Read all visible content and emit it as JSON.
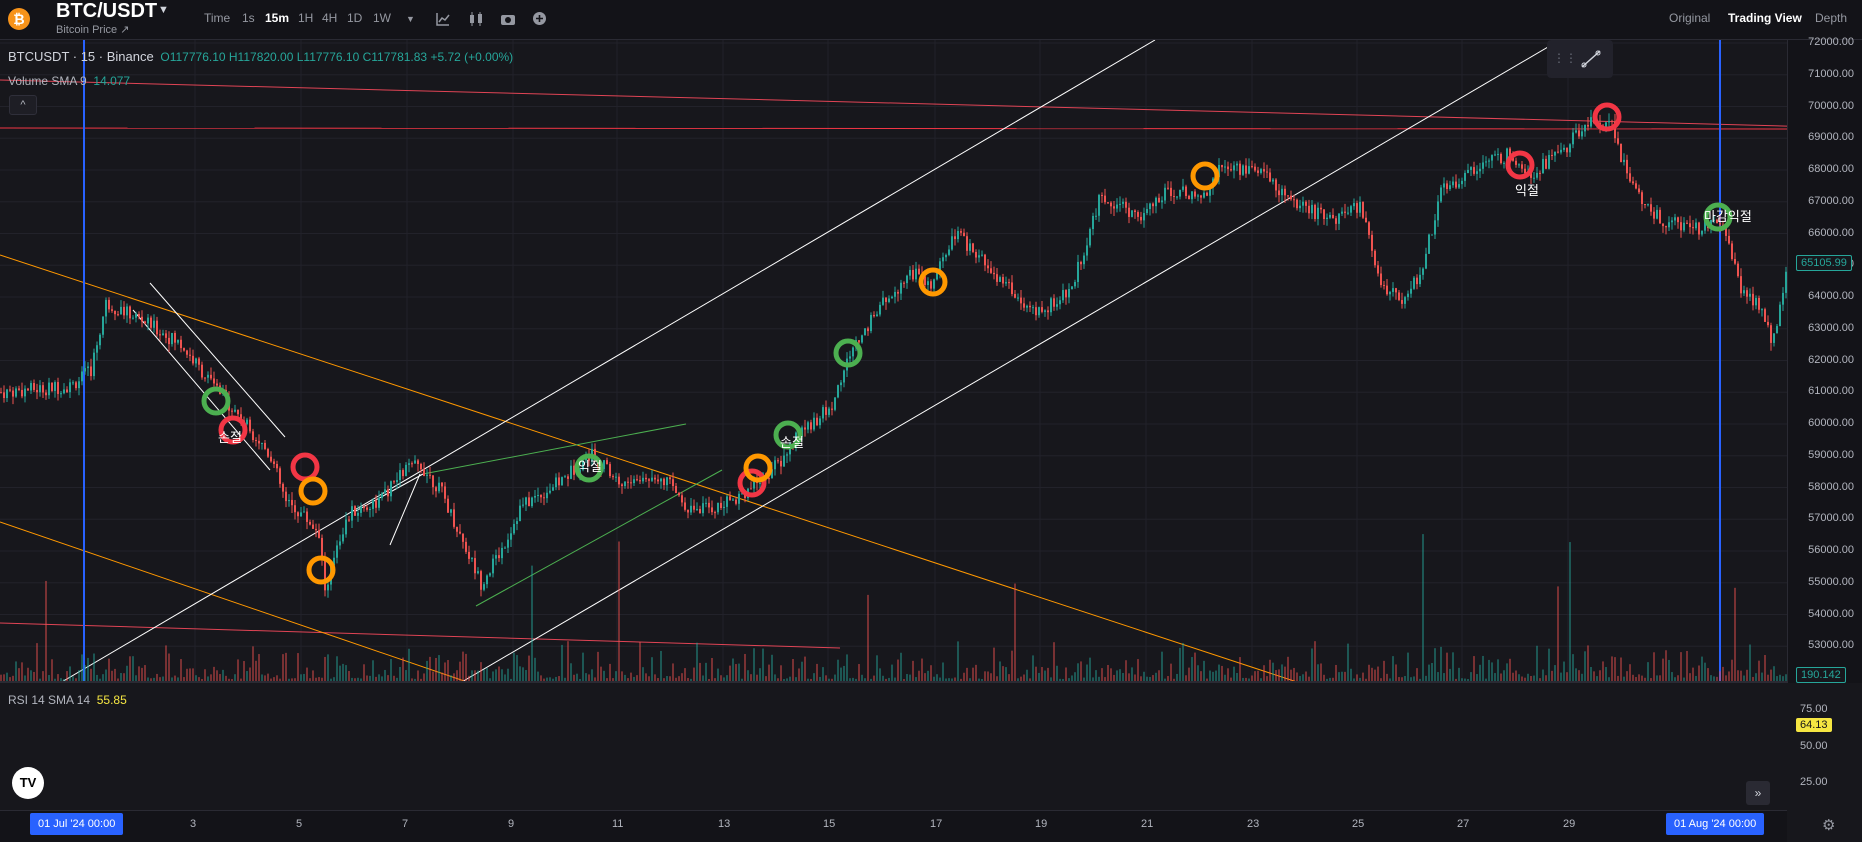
{
  "header": {
    "coin_icon": "bitcoin-icon",
    "pair": "BTC/USDT",
    "subtitle": "Bitcoin Price ↗",
    "timeframes": [
      "Time",
      "1s",
      "15m",
      "1H",
      "4H",
      "1D",
      "1W"
    ],
    "active_timeframe": "15m",
    "view_tabs": [
      "Original",
      "Trading View",
      "Depth"
    ],
    "active_view": "Trading View"
  },
  "legend": {
    "symbol": "BTCUSDT · 15 · Binance",
    "o": "O117776.10",
    "h": "H117820.00",
    "l": "L117776.10",
    "c": "C117781.83",
    "change": "+5.72 (+0.00%)",
    "volume_label": "Volume SMA 9",
    "volume_value": "14.077",
    "rsi_label": "RSI 14 SMA 14",
    "rsi_value": "55.85"
  },
  "price_axis": [
    "72000.00",
    "71000.00",
    "70000.00",
    "69000.00",
    "68000.00",
    "67000.00",
    "66000.00",
    "65000.00",
    "64000.00",
    "63000.00",
    "62000.00",
    "61000.00",
    "60000.00",
    "59000.00",
    "58000.00",
    "57000.00",
    "56000.00",
    "55000.00",
    "54000.00",
    "53000.00"
  ],
  "price_tags": {
    "last_price": "65105.99",
    "volume": "190.142",
    "rsi": "64.13"
  },
  "rsi_axis": [
    "75.00",
    "50.00",
    "25.00"
  ],
  "time_axis": [
    "3",
    "5",
    "7",
    "9",
    "11",
    "13",
    "15",
    "17",
    "19",
    "21",
    "23",
    "25",
    "27",
    "29"
  ],
  "date_tags": {
    "start": "01 Jul '24   00:00",
    "end": "01 Aug '24   00:00"
  },
  "annotations": [
    "손절",
    "익절",
    "손절",
    "익절",
    "마감익절"
  ],
  "colors": {
    "up": "#26a69a",
    "down": "#ef5350",
    "rsi": "#f5e642",
    "marker_green": "#4caf50",
    "marker_red": "#f23645",
    "marker_orange": "#ff9800",
    "vline": "#2962ff"
  }
}
